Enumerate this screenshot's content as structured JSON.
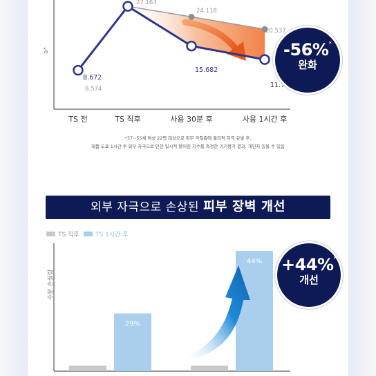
{
  "top_chart": {
    "y_axis_label": "a*",
    "categories": [
      "TS 전",
      "TS 직후",
      "사용 30분 후",
      "사용 1시간 후"
    ],
    "footnote_1": "*37~55세 여성 22명 대상으로 피부 각질층에 물리적 자극 유발 후,",
    "footnote_2": "제품 도포 1시간 후 외부 자극으로 인한 일시적 붉어짐 지수를 측정한 기기평가 결과, 개인차 있을 수 있음",
    "badge_pct": "-56%",
    "badge_sup": "*",
    "badge_text": "완화"
  },
  "bottom_chart": {
    "title_part1": "외부 자극으로 손상된 ",
    "title_part2": "피부 장벽 개선",
    "y_axis_label": "수분 손실량",
    "badge_pct": "+44%",
    "badge_sup": "*",
    "badge_text": "개선"
  },
  "chart_data": [
    {
      "type": "line",
      "categories": [
        "TS 전",
        "TS 직후",
        "사용 30분 후",
        "사용 1시간 후"
      ],
      "ylabel": "a*",
      "ylim": [
        5,
        28
      ],
      "series": [
        {
          "values": [
            8.672,
            27.163,
            15.682,
            11.767
          ],
          "color": "#2e3587",
          "labels": [
            "8.672",
            "27.163",
            "15.682",
            "11.767"
          ]
        },
        {
          "values": [
            8.574,
            27.163,
            24.118,
            20.537
          ],
          "color": "#9a9a9a",
          "labels": [
            "8.574",
            "27.163",
            "24.118",
            "20.537"
          ]
        }
      ]
    },
    {
      "type": "bar",
      "ylabel": "수분 손실량",
      "ylim": [
        0,
        100
      ],
      "groups": 2,
      "series": [
        {
          "name": "TS 직후",
          "values": [
            5,
            5
          ],
          "color": "#c8c8c8"
        },
        {
          "name": "TS 1시간 후",
          "values": [
            48,
            100
          ],
          "color": "#a9cfec",
          "labels": [
            "29%",
            "44%"
          ]
        }
      ]
    }
  ]
}
